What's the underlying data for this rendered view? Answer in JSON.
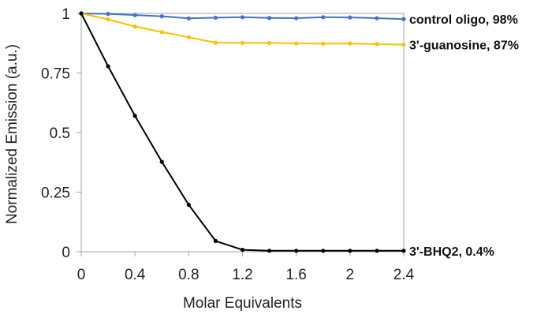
{
  "chart_data": {
    "type": "line",
    "xlabel": "Molar Equivalents",
    "ylabel": "Normalized Emission (a.u.)",
    "xlim": [
      0,
      2.4
    ],
    "ylim": [
      0,
      1
    ],
    "xticks": [
      "0",
      "0.4",
      "0.8",
      "1.2",
      "1.6",
      "2",
      "2.4"
    ],
    "yticks": [
      "0",
      "0.25",
      "0.5",
      "0.75",
      "1"
    ],
    "grid": false,
    "legend": "none",
    "x": [
      0,
      0.2,
      0.4,
      0.6,
      0.8,
      1.0,
      1.2,
      1.4,
      1.6,
      1.8,
      2.0,
      2.2,
      2.4
    ],
    "series": [
      {
        "name": "control oligo, 98%",
        "color": "#4472C4",
        "values": [
          1.0,
          0.998,
          0.993,
          0.988,
          0.979,
          0.982,
          0.984,
          0.981,
          0.98,
          0.984,
          0.983,
          0.98,
          0.976
        ]
      },
      {
        "name": "3'-guanosine, 87%",
        "color": "#FFC000",
        "values": [
          1.0,
          0.975,
          0.945,
          0.922,
          0.9,
          0.877,
          0.876,
          0.876,
          0.874,
          0.873,
          0.874,
          0.871,
          0.869
        ]
      },
      {
        "name": "3'-BHQ2, 0.4%",
        "color": "#000000",
        "values": [
          1.0,
          0.778,
          0.57,
          0.377,
          0.197,
          0.045,
          0.008,
          0.004,
          0.004,
          0.004,
          0.004,
          0.004,
          0.004
        ]
      }
    ]
  }
}
